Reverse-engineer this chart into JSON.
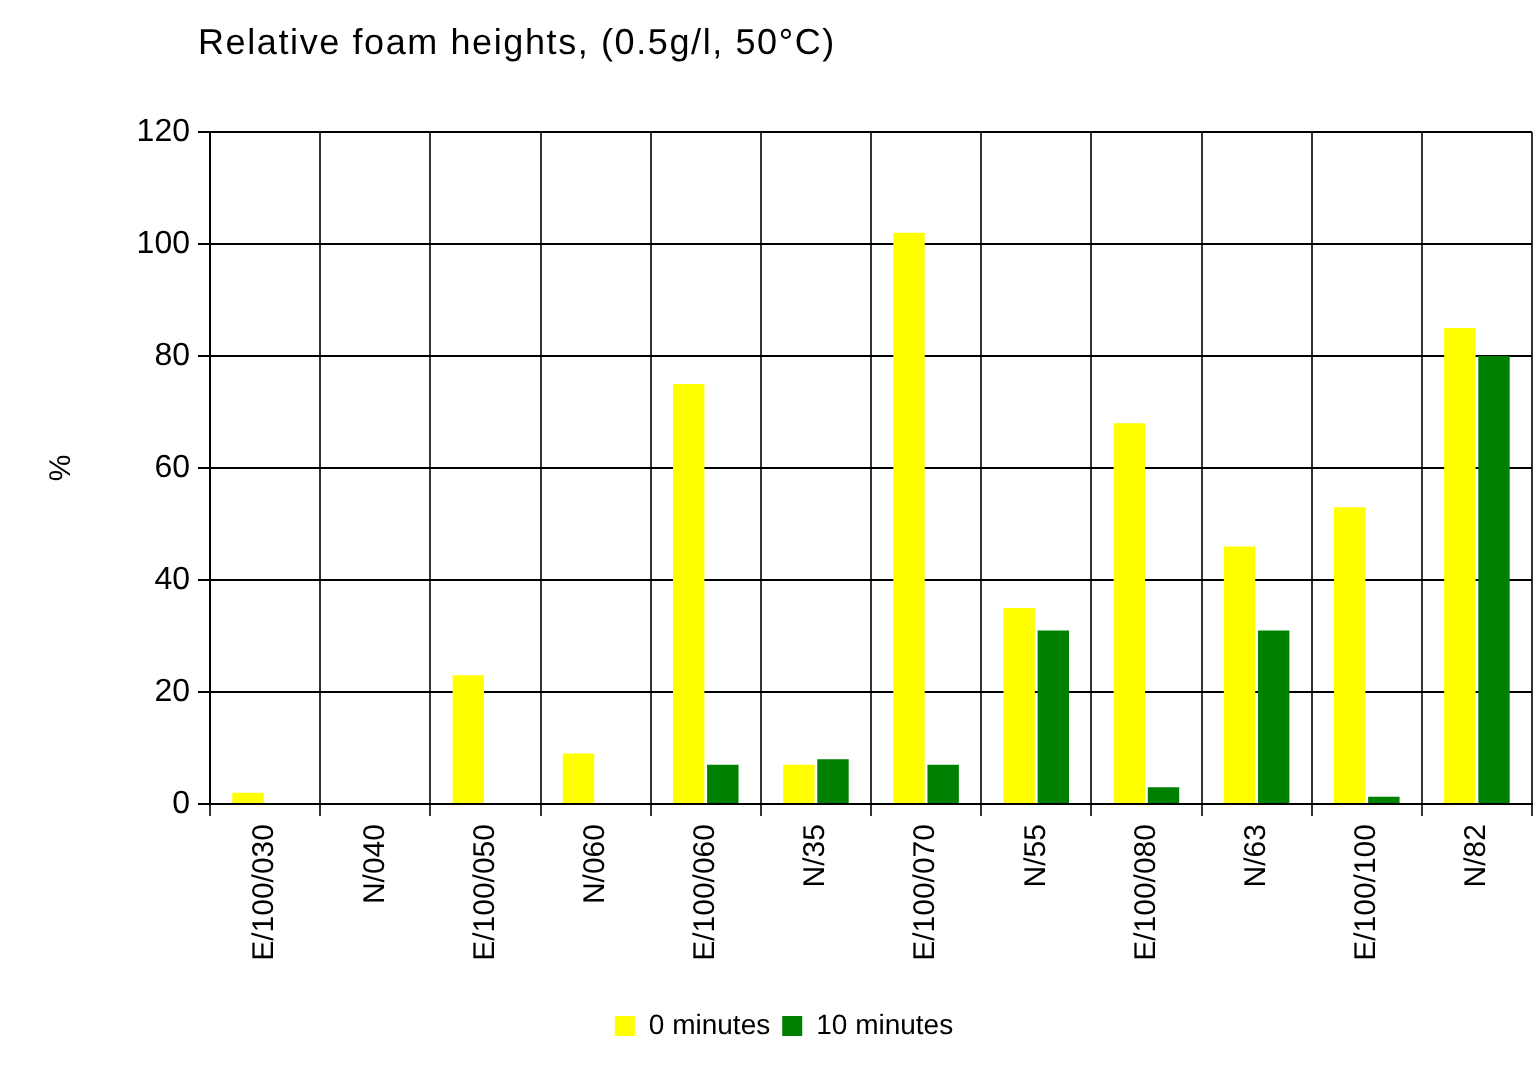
{
  "chart_data": {
    "type": "bar",
    "title": "Relative foam heights, (0.5g/l, 50°C)",
    "ylabel": "%",
    "categories": [
      "E/100/030",
      "N/040",
      "E/100/050",
      "N/060",
      "E/100/060",
      "N/35",
      "E/100/070",
      "N/55",
      "E/100/080",
      "N/63",
      "E/100/100",
      "N/82"
    ],
    "series": [
      {
        "name": "0 minutes",
        "color": "#ffff00",
        "values": [
          2,
          0,
          23,
          9,
          75,
          7,
          102,
          35,
          68,
          46,
          53,
          85
        ]
      },
      {
        "name": "10 minutes",
        "color": "#008000",
        "values": [
          0,
          0,
          0,
          0,
          7,
          8,
          7,
          31,
          3,
          31,
          1.3,
          80
        ]
      }
    ],
    "ylim": [
      0,
      120
    ],
    "yticks": [
      0,
      20,
      40,
      60,
      80,
      100,
      120
    ],
    "grid": true,
    "legend": "bottom"
  }
}
